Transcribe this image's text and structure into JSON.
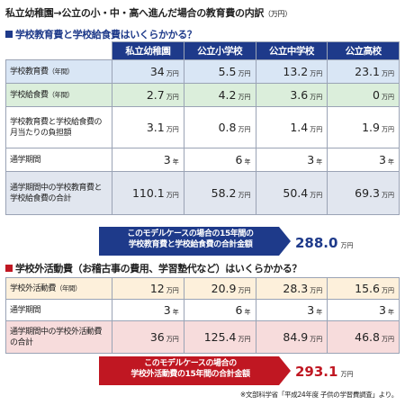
{
  "title": {
    "main": "私立幼稚園→公立の小・中・高へ進んだ場合の教育費の内訳",
    "unit": "（万円）"
  },
  "section1": {
    "heading": "学校教育費と学校給食費はいくらかかる？"
  },
  "section2": {
    "heading": "学校外活動費（お稽古事の費用、学習塾代など）はいくらかかる？"
  },
  "unit": "万円",
  "columns": [
    "私立幼稚園",
    "公立小学校",
    "公立中学校",
    "公立高校"
  ],
  "table1": {
    "rows": [
      {
        "label": "学校教育費",
        "label_sub": "（年間）",
        "values": [
          "34",
          "5.5",
          "13.2",
          "23.1"
        ],
        "units": [
          "万円",
          "万円",
          "万円",
          "万円"
        ]
      },
      {
        "label": "学校給食費",
        "label_sub": "（年間）",
        "values": [
          "2.7",
          "4.2",
          "3.6",
          "0"
        ],
        "units": [
          "万円",
          "万円",
          "万円",
          "万円"
        ]
      },
      {
        "label": "学校教育費と学校給食費の月当たりの負担額",
        "label_sub": "",
        "values": [
          "3.1",
          "0.8",
          "1.4",
          "1.9"
        ],
        "units": [
          "万円",
          "万円",
          "万円",
          "万円"
        ]
      },
      {
        "label": "通学期間",
        "label_sub": "",
        "values": [
          "3",
          "6",
          "3",
          "3"
        ],
        "units": [
          "年",
          "年",
          "年",
          "年"
        ]
      },
      {
        "label": "通学期間中の学校教育費と学校給食費の合計",
        "label_sub": "",
        "values": [
          "110.1",
          "58.2",
          "50.4",
          "69.3"
        ],
        "units": [
          "万円",
          "万円",
          "万円",
          "万円"
        ]
      }
    ]
  },
  "table2": {
    "rows": [
      {
        "label": "学校外活動費",
        "label_sub": "（年間）",
        "values": [
          "12",
          "20.9",
          "28.3",
          "15.6"
        ],
        "units": [
          "万円",
          "万円",
          "万円",
          "万円"
        ]
      },
      {
        "label": "通学期間",
        "label_sub": "",
        "values": [
          "3",
          "6",
          "3",
          "3"
        ],
        "units": [
          "年",
          "年",
          "年",
          "年"
        ]
      },
      {
        "label": "通学期間中の学校外活動費の合計",
        "label_sub": "",
        "values": [
          "36",
          "125.4",
          "84.9",
          "46.8"
        ],
        "units": [
          "万円",
          "万円",
          "万円",
          "万円"
        ]
      }
    ]
  },
  "summary1": {
    "line1": "このモデルケースの場合の15年間の",
    "line2": "学校教育費と学校給食費の合計金額",
    "total": "288.0",
    "unit": "万円"
  },
  "summary2": {
    "line1": "このモデルケースの場合の",
    "line2": "学校外活動費の15年間の合計金額",
    "total": "293.1",
    "unit": "万円"
  },
  "source": "※文部科学省「平成24年度 子供の学習費調査」より。",
  "colors": {
    "navy": "#1e3a8a",
    "red": "#c01722"
  }
}
